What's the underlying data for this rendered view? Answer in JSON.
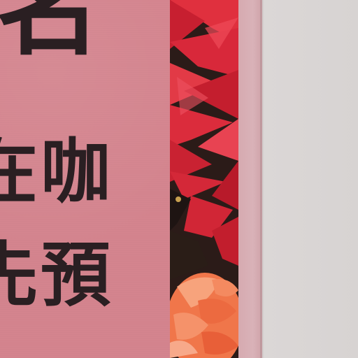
{
  "poster": {
    "heading_glyph": "名",
    "line_1": "在咖",
    "line_2": "先預"
  },
  "colors": {
    "poster_pink": "#d4848e",
    "text_dark": "#2a1f22",
    "flower_red": "#d8283a",
    "flower_orange": "#f0764a",
    "edge_pink": "#d6aab0",
    "wall_grey": "#dcd8d7"
  }
}
